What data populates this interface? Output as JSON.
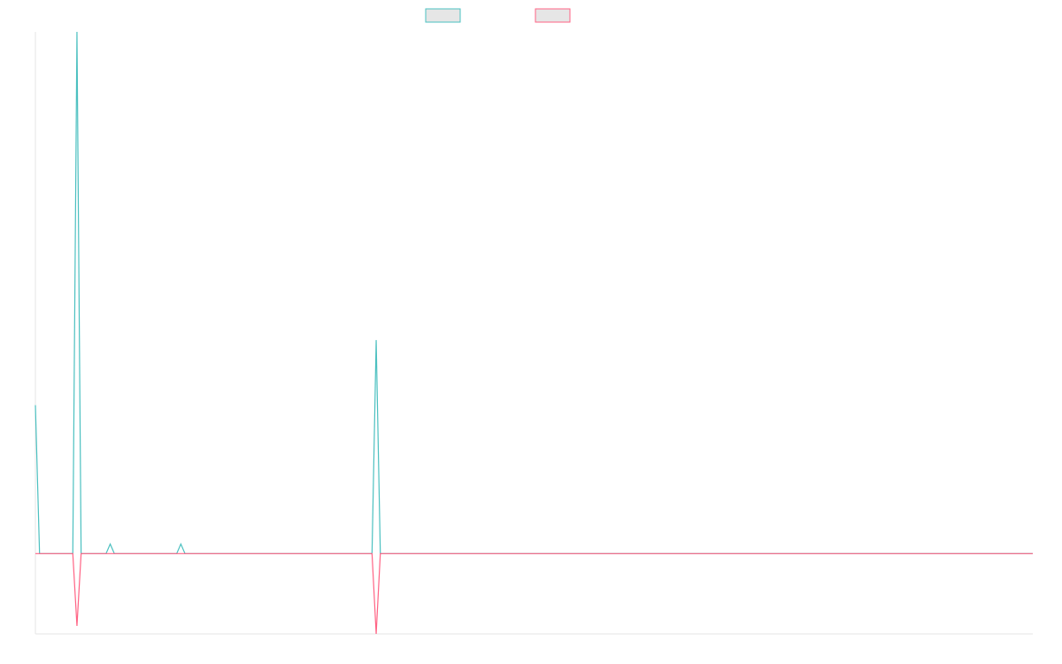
{
  "chart_data": {
    "type": "line",
    "x": [
      0,
      1,
      9,
      10,
      11,
      17,
      18,
      19,
      34,
      35,
      36,
      81,
      82,
      83,
      240
    ],
    "xlim": [
      0,
      240
    ],
    "ylim": [
      -1,
      6.5
    ],
    "series": [
      {
        "color": "#4bc0c0",
        "values": [
          1.85,
          0,
          0,
          6.5,
          0,
          0,
          0.12,
          0,
          0,
          0.12,
          0,
          0,
          2.66,
          0,
          0
        ]
      },
      {
        "color": "#ff6384",
        "values": [
          0,
          0,
          0,
          -0.9,
          0,
          0,
          0,
          0,
          0,
          0,
          0,
          0,
          -1.0,
          0,
          0
        ]
      }
    ],
    "legend": "top"
  }
}
